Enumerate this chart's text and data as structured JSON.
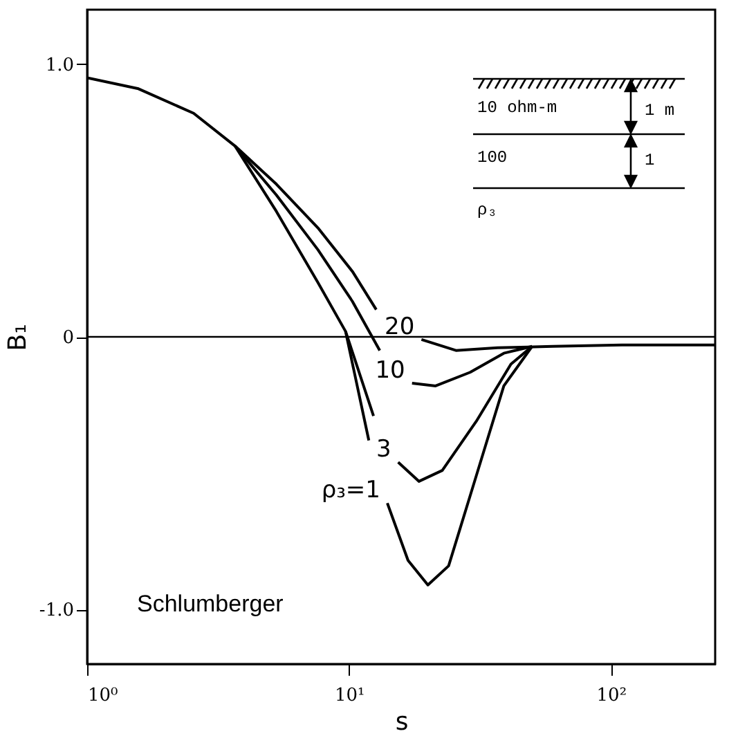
{
  "chart_data": {
    "type": "line",
    "xlabel": "s",
    "ylabel": "B₁",
    "log": "x",
    "xlim": [
      1,
      250
    ],
    "ylim": [
      -1.2,
      1.2
    ],
    "xticks": [
      {
        "value": 1,
        "label": "10⁰"
      },
      {
        "value": 10,
        "label": "10¹"
      },
      {
        "value": 100,
        "label": "10²"
      }
    ],
    "yticks": [
      {
        "value": 1,
        "label": "1.0"
      },
      0,
      {
        "value": -1,
        "label": "-1.0"
      }
    ],
    "grid": false,
    "line_style": "solid",
    "marker": "none",
    "ref_lines": [
      {
        "axis": "y",
        "value": 0,
        "color": "#000000"
      }
    ],
    "annotations": [
      "Schlumberger",
      "10 ohm-m",
      "1 m",
      "100",
      "1",
      "ρ₃"
    ],
    "series": [
      {
        "name": "20",
        "color": "#000000",
        "x": [
          1,
          1.57,
          2.55,
          3.67,
          5.28,
          7.6,
          10.3,
          12.7,
          15.5,
          18.9,
          25.6,
          36.9,
          60,
          110,
          250
        ],
        "values": [
          0.95,
          0.91,
          0.82,
          0.7,
          0.56,
          0.4,
          0.24,
          0.1,
          null,
          -0.01,
          -0.05,
          -0.04,
          -0.035,
          -0.03,
          -0.03
        ]
      },
      {
        "name": "10",
        "color": "#000000",
        "x": [
          3.67,
          5.28,
          7.6,
          10.3,
          13.1,
          15.2,
          17.4,
          21.4,
          29,
          39,
          50
        ],
        "values": [
          0.7,
          0.52,
          0.32,
          0.13,
          -0.05,
          null,
          -0.17,
          -0.18,
          -0.13,
          -0.06,
          -0.035
        ]
      },
      {
        "name": "3",
        "color": "#000000",
        "x": [
          3.67,
          5.28,
          7.6,
          9.7,
          12.4,
          13.8,
          15.4,
          18.5,
          22.7,
          30.6,
          41.5,
          50
        ],
        "values": [
          0.7,
          0.46,
          0.2,
          0.02,
          -0.29,
          null,
          -0.46,
          -0.53,
          -0.49,
          -0.31,
          -0.1,
          -0.035
        ]
      },
      {
        "name": "ρ₃=1",
        "color": "#000000",
        "x": [
          9.7,
          11.9,
          12.9,
          14,
          16.8,
          20,
          24,
          30.6,
          39,
          50
        ],
        "values": [
          0.02,
          -0.38,
          null,
          -0.61,
          -0.82,
          -0.91,
          -0.84,
          -0.51,
          -0.18,
          -0.035
        ]
      }
    ]
  }
}
